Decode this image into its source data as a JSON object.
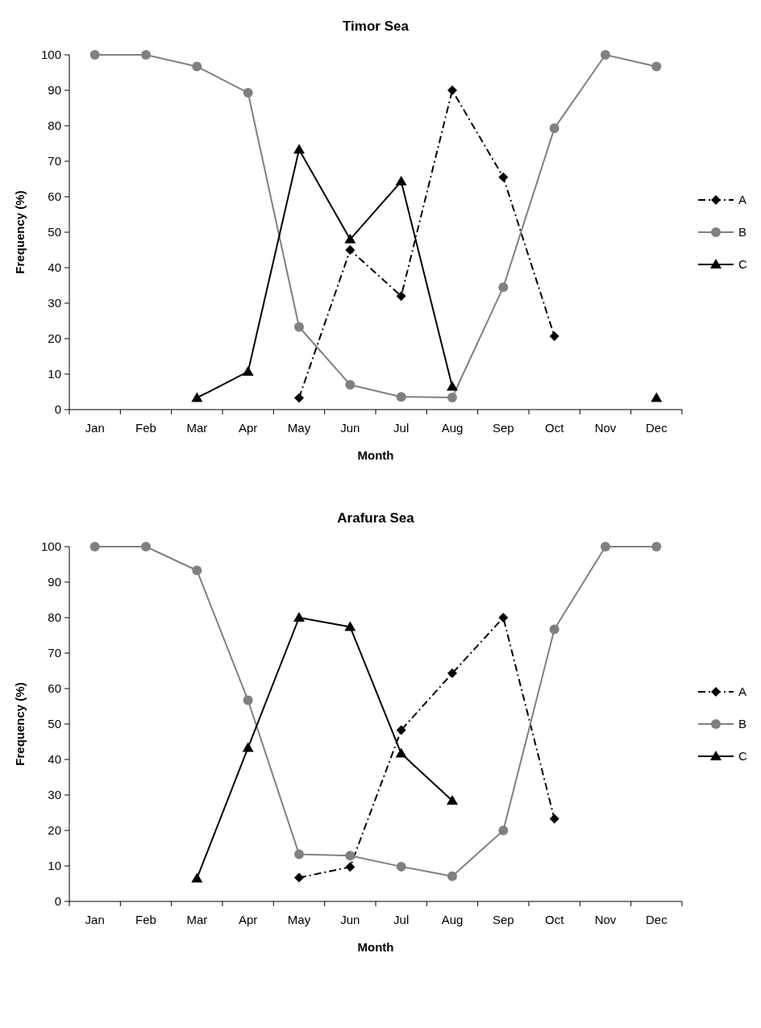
{
  "chart_data": [
    {
      "type": "line",
      "title": "Timor Sea",
      "xlabel": "Month",
      "ylabel": "Frequency (%)",
      "categories": [
        "Jan",
        "Feb",
        "Mar",
        "Apr",
        "May",
        "Jun",
        "Jul",
        "Aug",
        "Sep",
        "Oct",
        "Nov",
        "Dec"
      ],
      "ylim": [
        0,
        100
      ],
      "yticks": [
        0,
        10,
        20,
        30,
        40,
        50,
        60,
        70,
        80,
        90,
        100
      ],
      "grid": false,
      "legend": "right",
      "series": [
        {
          "name": "A",
          "color": "#000000",
          "marker": "diamond",
          "line_style": "dashed",
          "values": [
            null,
            null,
            null,
            null,
            3.3,
            45,
            32,
            90,
            65.5,
            20.7,
            null,
            null
          ]
        },
        {
          "name": "B",
          "color": "#808080",
          "marker": "circle",
          "line_style": "solid",
          "values": [
            100,
            100,
            96.7,
            89.3,
            23.3,
            7,
            3.6,
            3.4,
            34.5,
            79.3,
            100,
            96.7
          ]
        },
        {
          "name": "C",
          "color": "#000000",
          "marker": "triangle",
          "line_style": "solid",
          "values": [
            null,
            null,
            3.3,
            10.7,
            73.3,
            48,
            64.3,
            6.5,
            null,
            null,
            null,
            3.3
          ]
        }
      ]
    },
    {
      "type": "line",
      "title": "Arafura Sea",
      "xlabel": "Month",
      "ylabel": "Frequency (%)",
      "categories": [
        "Jan",
        "Feb",
        "Mar",
        "Apr",
        "May",
        "Jun",
        "Jul",
        "Aug",
        "Sep",
        "Oct",
        "Nov",
        "Dec"
      ],
      "ylim": [
        0,
        100
      ],
      "yticks": [
        0,
        10,
        20,
        30,
        40,
        50,
        60,
        70,
        80,
        90,
        100
      ],
      "grid": false,
      "legend": "right",
      "series": [
        {
          "name": "A",
          "color": "#000000",
          "marker": "diamond",
          "line_style": "dashed",
          "values": [
            null,
            null,
            null,
            null,
            6.7,
            9.7,
            48.3,
            64.3,
            80,
            23.3,
            null,
            null
          ]
        },
        {
          "name": "B",
          "color": "#808080",
          "marker": "circle",
          "line_style": "solid",
          "values": [
            100,
            100,
            93.3,
            56.7,
            13.3,
            12.9,
            9.8,
            7.1,
            20,
            76.7,
            100,
            100
          ]
        },
        {
          "name": "C",
          "color": "#000000",
          "marker": "triangle",
          "line_style": "solid",
          "values": [
            null,
            null,
            6.5,
            43.3,
            80,
            77.4,
            41.7,
            28.4,
            null,
            null,
            null,
            null
          ]
        }
      ]
    }
  ]
}
